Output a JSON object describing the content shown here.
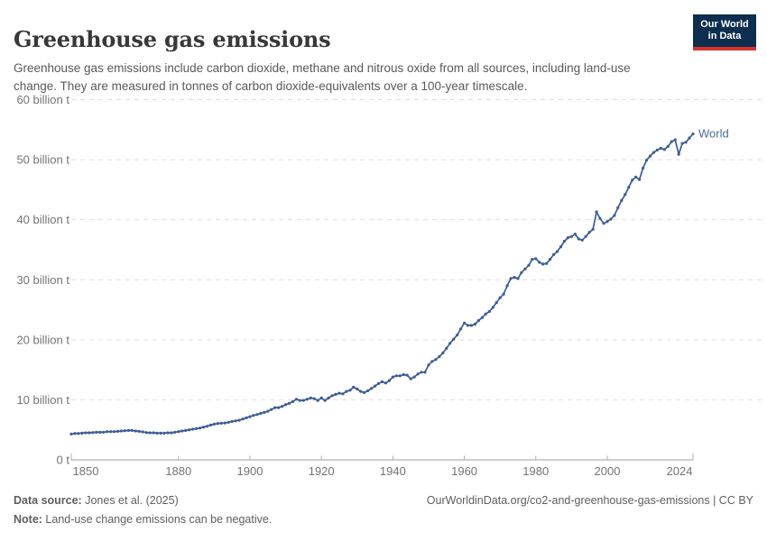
{
  "header": {
    "title": "Greenhouse gas emissions",
    "subtitle": "Greenhouse gas emissions include carbon dioxide, methane and nitrous oxide from all sources, including land-use change. They are measured in tonnes of carbon dioxide-equivalents over a 100-year timescale.",
    "logo": {
      "line1": "Our World",
      "line2": "in Data",
      "bg_color": "#0d2e4e",
      "accent_color": "#d7352a"
    }
  },
  "chart_data": {
    "type": "line",
    "title": "Greenhouse gas emissions",
    "xlabel": "",
    "ylabel": "",
    "xlim": [
      1850,
      2024
    ],
    "ylim": [
      0,
      60
    ],
    "grid": "horizontal-dashed",
    "legend_position": "end-of-line",
    "x_ticks": [
      {
        "year": 1850,
        "label": "1850"
      },
      {
        "year": 1880,
        "label": "1880"
      },
      {
        "year": 1900,
        "label": "1900"
      },
      {
        "year": 1920,
        "label": "1920"
      },
      {
        "year": 1940,
        "label": "1940"
      },
      {
        "year": 1960,
        "label": "1960"
      },
      {
        "year": 1980,
        "label": "1980"
      },
      {
        "year": 2000,
        "label": "2000"
      },
      {
        "year": 2024,
        "label": "2024"
      }
    ],
    "y_ticks": [
      {
        "value": 0,
        "label": "0 t"
      },
      {
        "value": 10,
        "label": "10 billion t"
      },
      {
        "value": 20,
        "label": "20 billion t"
      },
      {
        "value": 30,
        "label": "30 billion t"
      },
      {
        "value": 40,
        "label": "40 billion t"
      },
      {
        "value": 50,
        "label": "50 billion t"
      },
      {
        "value": 60,
        "label": "60 billion t"
      }
    ],
    "series": [
      {
        "name": "World",
        "color": "#3d5c94",
        "label_color": "#4c6a9c",
        "unit": "billion t",
        "start_year": 1850,
        "end_year": 2024,
        "values": [
          4.3,
          4.4,
          4.4,
          4.45,
          4.5,
          4.5,
          4.55,
          4.6,
          4.6,
          4.6,
          4.7,
          4.7,
          4.7,
          4.75,
          4.8,
          4.85,
          4.9,
          4.9,
          4.8,
          4.75,
          4.65,
          4.55,
          4.5,
          4.5,
          4.45,
          4.45,
          4.45,
          4.5,
          4.5,
          4.6,
          4.7,
          4.8,
          4.9,
          5.0,
          5.1,
          5.2,
          5.3,
          5.45,
          5.6,
          5.8,
          5.95,
          6.05,
          6.1,
          6.15,
          6.25,
          6.4,
          6.5,
          6.6,
          6.8,
          7.0,
          7.2,
          7.4,
          7.55,
          7.75,
          7.9,
          8.1,
          8.4,
          8.7,
          8.7,
          8.9,
          9.2,
          9.4,
          9.7,
          10.1,
          9.9,
          9.9,
          10.1,
          10.3,
          10.2,
          9.9,
          10.3,
          9.9,
          10.3,
          10.7,
          10.9,
          11.1,
          11.0,
          11.4,
          11.6,
          12.1,
          11.8,
          11.4,
          11.2,
          11.5,
          11.9,
          12.3,
          12.7,
          13.0,
          12.8,
          13.2,
          13.8,
          14.0,
          14.0,
          14.2,
          14.1,
          13.5,
          13.8,
          14.3,
          14.6,
          14.6,
          15.8,
          16.4,
          16.7,
          17.2,
          17.8,
          18.6,
          19.4,
          20.1,
          20.8,
          21.8,
          22.8,
          22.4,
          22.4,
          22.6,
          23.2,
          23.7,
          24.3,
          24.7,
          25.4,
          26.2,
          27.0,
          27.6,
          29.0,
          30.2,
          30.4,
          30.2,
          31.2,
          31.8,
          32.4,
          33.4,
          33.5,
          32.9,
          32.6,
          32.7,
          33.4,
          34.2,
          34.7,
          35.5,
          36.4,
          37.0,
          37.2,
          37.6,
          36.8,
          36.6,
          37.2,
          37.9,
          38.4,
          41.3,
          40.2,
          39.4,
          39.7,
          40.1,
          40.7,
          42.0,
          43.2,
          44.2,
          45.4,
          46.6,
          47.1,
          46.7,
          48.6,
          49.9,
          50.6,
          51.2,
          51.6,
          51.9,
          51.7,
          52.2,
          53.0,
          53.3,
          50.9,
          52.7,
          52.9,
          53.6,
          54.3
        ]
      }
    ],
    "end_label": "World"
  },
  "footer": {
    "source_label": "Data source:",
    "source_value": " Jones et al. (2025)",
    "url": "OurWorldinData.org/co2-and-greenhouse-gas-emissions | CC BY",
    "note_label": "Note:",
    "note_value": " Land-use change emissions can be negative."
  },
  "colors": {
    "title": "#383838",
    "subtitle": "#595959",
    "axis_text": "#737373",
    "gridline": "#dedede",
    "axis_line": "#9c9c9c",
    "tick_mark": "#adadad",
    "footer_text": "#5e5e5e"
  }
}
